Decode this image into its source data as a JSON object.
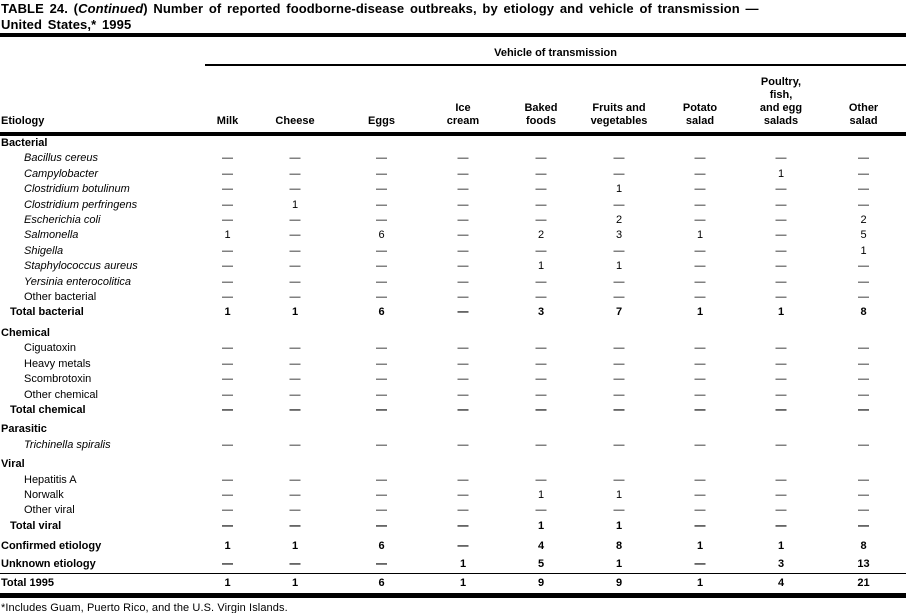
{
  "title": {
    "part1": "TABLE 24. (",
    "continued": "Continued",
    "part2": ") Number of reported foodborne-disease outbreaks, by etiology and vehicle of transmission —",
    "line2": "United States,* 1995"
  },
  "table": {
    "spanner": "Vehicle of transmission",
    "etiology_header": "Etiology",
    "columns": [
      "Milk",
      "Cheese",
      "Eggs",
      "Ice\ncream",
      "Baked\nfoods",
      "Fruits and\nvegetables",
      "Potato\nsalad",
      "Poultry,\nfish,\nand egg\nsalads",
      "Other\nsalad"
    ],
    "sections": [
      {
        "header": "Bacterial",
        "rows": [
          {
            "label": "Bacillus cereus",
            "kind": "species",
            "values": [
              "—",
              "—",
              "—",
              "—",
              "—",
              "—",
              "—",
              "—",
              "—"
            ]
          },
          {
            "label": "Campylobacter",
            "kind": "species",
            "values": [
              "—",
              "—",
              "—",
              "—",
              "—",
              "—",
              "—",
              "1",
              "—"
            ]
          },
          {
            "label": "Clostridium botulinum",
            "kind": "species",
            "values": [
              "—",
              "—",
              "—",
              "—",
              "—",
              "1",
              "—",
              "—",
              "—"
            ]
          },
          {
            "label": "Clostridium perfringens",
            "kind": "species",
            "values": [
              "—",
              "1",
              "—",
              "—",
              "—",
              "—",
              "—",
              "—",
              "—"
            ]
          },
          {
            "label": "Escherichia coli",
            "kind": "species",
            "values": [
              "—",
              "—",
              "—",
              "—",
              "—",
              "2",
              "—",
              "—",
              "2"
            ]
          },
          {
            "label": "Salmonella",
            "kind": "species",
            "values": [
              "1",
              "—",
              "6",
              "—",
              "2",
              "3",
              "1",
              "—",
              "5"
            ]
          },
          {
            "label": "Shigella",
            "kind": "species",
            "values": [
              "—",
              "—",
              "—",
              "—",
              "—",
              "—",
              "—",
              "—",
              "1"
            ]
          },
          {
            "label": "Staphylococcus aureus",
            "kind": "species",
            "values": [
              "—",
              "—",
              "—",
              "—",
              "1",
              "1",
              "—",
              "—",
              "—"
            ]
          },
          {
            "label": "Yersinia enterocolitica",
            "kind": "species",
            "values": [
              "—",
              "—",
              "—",
              "—",
              "—",
              "—",
              "—",
              "—",
              "—"
            ]
          },
          {
            "label": "Other bacterial",
            "kind": "plain",
            "values": [
              "—",
              "—",
              "—",
              "—",
              "—",
              "—",
              "—",
              "—",
              "—"
            ]
          },
          {
            "label": "Total bacterial",
            "kind": "total",
            "values": [
              "1",
              "1",
              "6",
              "—",
              "3",
              "7",
              "1",
              "1",
              "8"
            ]
          }
        ]
      },
      {
        "header": "Chemical",
        "rows": [
          {
            "label": "Ciguatoxin",
            "kind": "plain",
            "values": [
              "—",
              "—",
              "—",
              "—",
              "—",
              "—",
              "—",
              "—",
              "—"
            ]
          },
          {
            "label": "Heavy metals",
            "kind": "plain",
            "values": [
              "—",
              "—",
              "—",
              "—",
              "—",
              "—",
              "—",
              "—",
              "—"
            ]
          },
          {
            "label": "Scombrotoxin",
            "kind": "plain",
            "values": [
              "—",
              "—",
              "—",
              "—",
              "—",
              "—",
              "—",
              "—",
              "—"
            ]
          },
          {
            "label": "Other chemical",
            "kind": "plain",
            "values": [
              "—",
              "—",
              "—",
              "—",
              "—",
              "—",
              "—",
              "—",
              "—"
            ]
          },
          {
            "label": "Total chemical",
            "kind": "total",
            "values": [
              "—",
              "—",
              "—",
              "—",
              "—",
              "—",
              "—",
              "—",
              "—"
            ]
          }
        ]
      },
      {
        "header": "Parasitic",
        "rows": [
          {
            "label": "Trichinella spiralis",
            "kind": "species",
            "values": [
              "—",
              "—",
              "—",
              "—",
              "—",
              "—",
              "—",
              "—",
              "—"
            ]
          }
        ]
      },
      {
        "header": "Viral",
        "rows": [
          {
            "label": "Hepatitis A",
            "kind": "plain",
            "values": [
              "—",
              "—",
              "—",
              "—",
              "—",
              "—",
              "—",
              "—",
              "—"
            ]
          },
          {
            "label": "Norwalk",
            "kind": "plain",
            "values": [
              "—",
              "—",
              "—",
              "—",
              "1",
              "1",
              "—",
              "—",
              "—"
            ]
          },
          {
            "label": "Other viral",
            "kind": "plain",
            "values": [
              "—",
              "—",
              "—",
              "—",
              "—",
              "—",
              "—",
              "—",
              "—"
            ]
          },
          {
            "label": "Total viral",
            "kind": "total",
            "values": [
              "—",
              "—",
              "—",
              "—",
              "1",
              "1",
              "—",
              "—",
              "—"
            ]
          }
        ]
      }
    ],
    "summary_rows": [
      {
        "label": "Confirmed etiology",
        "kind": "summary",
        "values": [
          "1",
          "1",
          "6",
          "—",
          "4",
          "8",
          "1",
          "1",
          "8"
        ]
      },
      {
        "label": "Unknown etiology",
        "kind": "summary",
        "values": [
          "—",
          "—",
          "—",
          "1",
          "5",
          "1",
          "—",
          "3",
          "13"
        ]
      }
    ],
    "grand_total": {
      "label": "Total 1995",
      "kind": "grand",
      "values": [
        "1",
        "1",
        "6",
        "1",
        "9",
        "9",
        "1",
        "4",
        "21"
      ]
    }
  },
  "footnote": "*Includes Guam, Puerto Rico, and the U.S. Virgin Islands."
}
